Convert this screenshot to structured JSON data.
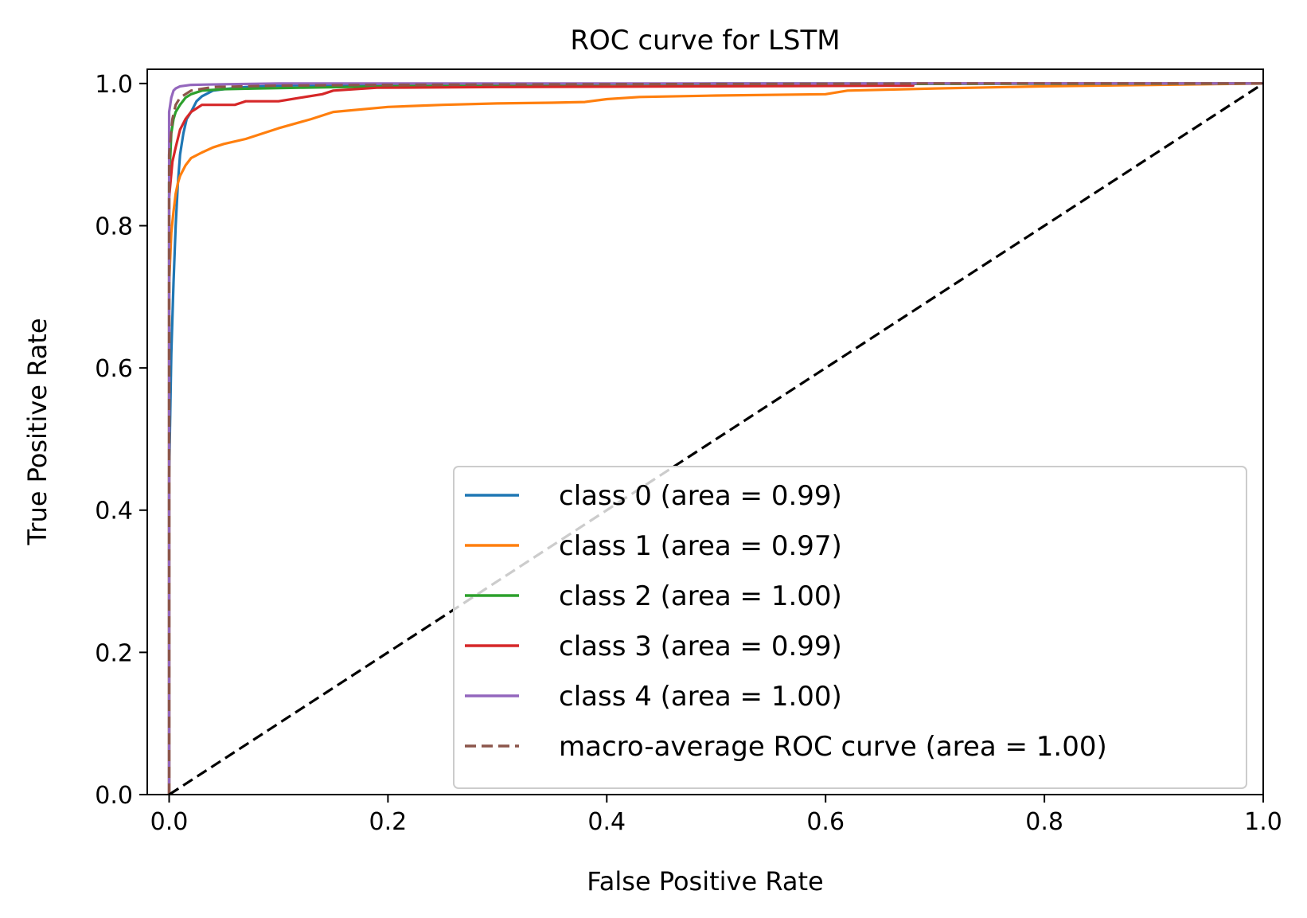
{
  "chart_data": {
    "type": "line",
    "title": "ROC curve for LSTM",
    "xlabel": "False Positive Rate",
    "ylabel": "True Positive Rate",
    "xlim": [
      -0.02,
      1.0
    ],
    "ylim": [
      0.0,
      1.02
    ],
    "xticks": [
      0.0,
      0.2,
      0.4,
      0.6,
      0.8,
      1.0
    ],
    "yticks": [
      0.0,
      0.2,
      0.4,
      0.6,
      0.8,
      1.0
    ],
    "xtick_labels": [
      "0.0",
      "0.2",
      "0.4",
      "0.6",
      "0.8",
      "1.0"
    ],
    "ytick_labels": [
      "0.0",
      "0.2",
      "0.4",
      "0.6",
      "0.8",
      "1.0"
    ],
    "grid": false,
    "legend_position": "lower-right",
    "series": [
      {
        "name": "class 0 (area = 0.99)",
        "color": "#1f77b4",
        "dash": "solid",
        "x": [
          0.0,
          0.0,
          0.002,
          0.004,
          0.006,
          0.008,
          0.01,
          0.013,
          0.016,
          0.02,
          0.025,
          0.03,
          0.04,
          0.05,
          0.07,
          0.1,
          0.15,
          0.3,
          0.5,
          1.0
        ],
        "y": [
          0.0,
          0.45,
          0.62,
          0.72,
          0.8,
          0.86,
          0.9,
          0.93,
          0.95,
          0.96,
          0.975,
          0.982,
          0.99,
          0.992,
          0.995,
          0.997,
          0.998,
          0.999,
          1.0,
          1.0
        ]
      },
      {
        "name": "class 1 (area = 0.97)",
        "color": "#ff7f0e",
        "dash": "solid",
        "x": [
          0.0,
          0.0,
          0.002,
          0.004,
          0.006,
          0.008,
          0.01,
          0.015,
          0.02,
          0.03,
          0.04,
          0.05,
          0.07,
          0.1,
          0.13,
          0.15,
          0.2,
          0.25,
          0.3,
          0.35,
          0.38,
          0.4,
          0.43,
          0.5,
          0.6,
          0.62,
          0.7,
          0.8,
          0.9,
          1.0
        ],
        "y": [
          0.0,
          0.72,
          0.79,
          0.82,
          0.845,
          0.86,
          0.87,
          0.885,
          0.895,
          0.903,
          0.91,
          0.915,
          0.922,
          0.937,
          0.95,
          0.96,
          0.967,
          0.97,
          0.972,
          0.973,
          0.974,
          0.978,
          0.981,
          0.983,
          0.985,
          0.99,
          0.993,
          0.996,
          0.998,
          1.0
        ]
      },
      {
        "name": "class 2 (area = 1.00)",
        "color": "#2ca02c",
        "dash": "solid",
        "x": [
          0.0,
          0.0,
          0.002,
          0.004,
          0.006,
          0.01,
          0.015,
          0.02,
          0.03,
          0.05,
          0.08,
          0.12,
          0.2,
          0.4,
          1.0
        ],
        "y": [
          0.0,
          0.86,
          0.93,
          0.95,
          0.96,
          0.97,
          0.98,
          0.985,
          0.99,
          0.992,
          0.993,
          0.994,
          0.996,
          0.999,
          1.0
        ]
      },
      {
        "name": "class 3 (area = 0.99)",
        "color": "#d62728",
        "dash": "solid",
        "x": [
          0.0,
          0.0,
          0.003,
          0.006,
          0.01,
          0.015,
          0.02,
          0.025,
          0.03,
          0.06,
          0.07,
          0.1,
          0.12,
          0.14,
          0.15,
          0.19,
          0.3,
          0.5,
          0.68,
          0.68,
          1.0
        ],
        "y": [
          0.0,
          0.84,
          0.89,
          0.91,
          0.935,
          0.95,
          0.96,
          0.965,
          0.97,
          0.97,
          0.975,
          0.975,
          0.98,
          0.985,
          0.99,
          0.994,
          0.995,
          0.996,
          0.997,
          1.0,
          1.0
        ]
      },
      {
        "name": "class 4 (area = 1.00)",
        "color": "#9467bd",
        "dash": "solid",
        "x": [
          0.0,
          0.0,
          0.002,
          0.004,
          0.006,
          0.01,
          0.02,
          0.05,
          0.1,
          1.0
        ],
        "y": [
          0.0,
          0.96,
          0.98,
          0.99,
          0.993,
          0.996,
          0.998,
          0.999,
          1.0,
          1.0
        ]
      },
      {
        "name": "macro-average ROC curve (area = 1.00)",
        "color": "#8c564b",
        "dash": "dashed",
        "x": [
          0.0,
          0.0,
          0.003,
          0.006,
          0.01,
          0.02,
          0.04,
          0.1,
          0.2,
          0.4,
          0.7,
          1.0
        ],
        "y": [
          0.0,
          0.9,
          0.95,
          0.97,
          0.98,
          0.99,
          0.995,
          0.997,
          0.998,
          0.999,
          1.0,
          1.0
        ]
      },
      {
        "name": "",
        "color": "#000000",
        "dash": "dashed",
        "x": [
          0.0,
          1.0
        ],
        "y": [
          0.0,
          1.0
        ]
      }
    ]
  }
}
